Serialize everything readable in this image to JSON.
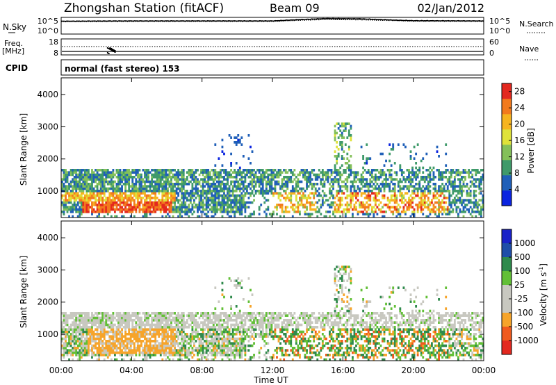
{
  "header": {
    "station": "Zhongshan Station (fitACF)",
    "beam": "Beam 09",
    "date": "02/Jan/2012"
  },
  "noise_panel": {
    "left_label": "N.Sky",
    "right_label": "N.Search",
    "left_ticks": [
      "10^5",
      "10^0"
    ],
    "right_ticks": [
      "10^5",
      "10^0"
    ]
  },
  "freq_panel": {
    "left_label_top": "Freq.",
    "left_label_units": "[MHz]",
    "right_label": "Nave",
    "left_ticks": [
      "18",
      "8"
    ],
    "right_ticks": [
      "60",
      "0"
    ]
  },
  "cpid": {
    "label": "CPID",
    "value": "normal (fast stereo) 153"
  },
  "colors": {
    "power_scale": [
      "#0b24e0",
      "#1f5fb8",
      "#3f9a6a",
      "#84c05a",
      "#dfe23a",
      "#f6b420",
      "#f27a1e",
      "#e3281f"
    ],
    "velocity_scale": [
      "#e3281f",
      "#f05a1e",
      "#f6a42a",
      "#c8c8c0",
      "#c8c8c0",
      "#62bf36",
      "#2f8a4c",
      "#1f4ea8",
      "#1a22c8"
    ]
  },
  "chart_data": [
    {
      "type": "line",
      "panel": "noise",
      "ylabel": "N.Sky",
      "y2label": "N.Search",
      "x": [
        0,
        4,
        8,
        12,
        13.5,
        15,
        17,
        19,
        20,
        24
      ],
      "series": [
        {
          "values": [
            4.6,
            4.7,
            4.7,
            4.7,
            5.2,
            5.6,
            5.5,
            5.0,
            4.8,
            4.7
          ]
        },
        {
          "values": [
            4.4,
            4.5,
            4.5,
            4.5,
            4.9,
            5.2,
            5.1,
            4.8,
            4.6,
            4.5
          ]
        }
      ],
      "ylim": [
        0,
        5
      ],
      "y_scale": "log"
    },
    {
      "type": "line",
      "panel": "frequency",
      "ylabel": "Freq. [MHz]",
      "y2label": "Nave",
      "x": [
        0,
        24
      ],
      "series": [
        {
          "values": [
            10.5,
            10.5
          ]
        }
      ],
      "ylim": [
        8,
        18
      ],
      "y2lim": [
        0,
        60
      ]
    },
    {
      "type": "heatmap",
      "panel": "power",
      "ylabel": "Slant Range [km]",
      "colorbar_label": "Power [dB]",
      "xlim": [
        0,
        24
      ],
      "ylim": [
        180,
        4500
      ],
      "x_ticks": [
        "00:00",
        "04:00",
        "08:00",
        "12:00",
        "16:00",
        "20:00",
        "00:00"
      ],
      "y_ticks": [
        1000,
        2000,
        3000,
        4000
      ],
      "colorbar_ticks": [
        4,
        8,
        12,
        16,
        20,
        24,
        28
      ],
      "colorbar_range": [
        0,
        30
      ]
    },
    {
      "type": "heatmap",
      "panel": "velocity",
      "ylabel": "Slant Range [km]",
      "xlabel": "Time UT",
      "colorbar_label": "Velocity [m s-1]",
      "xlim": [
        0,
        24
      ],
      "ylim": [
        180,
        4500
      ],
      "x_ticks": [
        "00:00",
        "04:00",
        "08:00",
        "12:00",
        "16:00",
        "20:00",
        "00:00"
      ],
      "y_ticks": [
        1000,
        2000,
        3000,
        4000
      ],
      "colorbar_ticks": [
        "1000",
        "500",
        "100",
        "25",
        "-25",
        "-100",
        "-500",
        "-1000"
      ]
    }
  ]
}
